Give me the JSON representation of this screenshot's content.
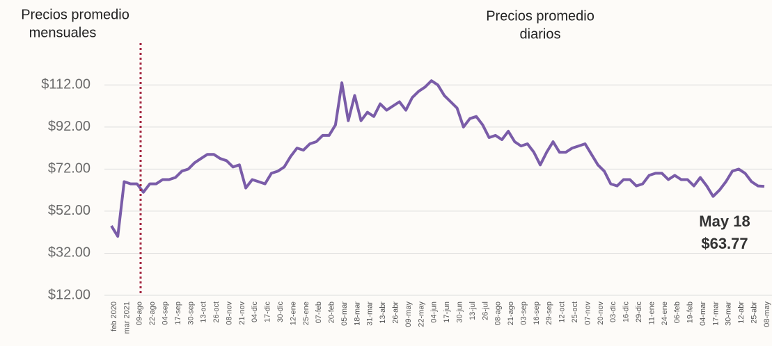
{
  "chart_data": {
    "type": "line",
    "annotations": [
      {
        "lines": [
          "Precios promedio",
          "mensuales"
        ]
      },
      {
        "lines": [
          "Precios promedio",
          "diarios"
        ]
      }
    ],
    "callout": {
      "date": "May 18",
      "price": "$63.77"
    },
    "categories": [
      "feb 2020",
      null,
      "mar  2021",
      null,
      "09-ago",
      null,
      "22-ago",
      null,
      "04-sep",
      null,
      "17-sep",
      null,
      "30-sep",
      null,
      "13-oct",
      null,
      "26-oct",
      null,
      "08-nov",
      null,
      "21-nov",
      null,
      "04-dic",
      null,
      "17-dic",
      null,
      "30-dic",
      null,
      "12-ene",
      null,
      "25-ene",
      null,
      "07-feb",
      null,
      "20-feb",
      null,
      "05-mar",
      null,
      "18-mar",
      null,
      "31-mar",
      null,
      "13-abr",
      null,
      "26-abr",
      null,
      "09-may",
      null,
      "22-may",
      null,
      "04-jun",
      null,
      "17-jun",
      null,
      "30-jun",
      null,
      "13-jul",
      null,
      "26-jul",
      null,
      "08-ago",
      null,
      "21-ago",
      null,
      "03-sep",
      null,
      "16-sep",
      null,
      "29-sep",
      null,
      "12-oct",
      null,
      "25-oct",
      null,
      "07-nov",
      null,
      "20-nov",
      null,
      "03-dic",
      null,
      "16-dic",
      null,
      "29-dic",
      null,
      "11-ene",
      null,
      "24-ene",
      null,
      "06-feb",
      null,
      "19-feb",
      null,
      "04-mar",
      null,
      "17-mar",
      null,
      "30-mar",
      null,
      "12-abr",
      null,
      "25-abr",
      null,
      "08-may"
    ],
    "series": [
      {
        "color": "#7a5ca8",
        "values": [
          45,
          40,
          66,
          65,
          65,
          61,
          65,
          65,
          67,
          67,
          68,
          71,
          72,
          75,
          77,
          79,
          79,
          77,
          76,
          73,
          74,
          63,
          67,
          66,
          65,
          70,
          71,
          73,
          78,
          82,
          81,
          84,
          85,
          88,
          88,
          93,
          113,
          95,
          107,
          95,
          99,
          97,
          103,
          100,
          102,
          104,
          100,
          106,
          109,
          111,
          114,
          112,
          107,
          104,
          101,
          92,
          96,
          97,
          93,
          87,
          88,
          86,
          90,
          85,
          83,
          84,
          80,
          74,
          80,
          85,
          80,
          80,
          82,
          83,
          84,
          79,
          74,
          71,
          65,
          64,
          67,
          67,
          64,
          65,
          69,
          70,
          70,
          67,
          69,
          67,
          67,
          64,
          68,
          64,
          59,
          62,
          66,
          71,
          72,
          70,
          66,
          64,
          63.77
        ]
      }
    ],
    "ylim": [
      12,
      122
    ],
    "yticks": [
      {
        "value": 12,
        "label": "$12.00"
      },
      {
        "value": 32,
        "label": "$32.00"
      },
      {
        "value": 52,
        "label": "$52.00"
      },
      {
        "value": 72,
        "label": "$72.00"
      },
      {
        "value": 92,
        "label": "$92.00"
      },
      {
        "value": 112,
        "label": "$112.00"
      }
    ],
    "grid": true
  }
}
